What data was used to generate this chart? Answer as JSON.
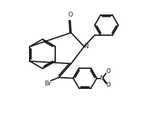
{
  "bg_color": "#ffffff",
  "line_color": "#1a1a1a",
  "line_width": 1.3,
  "font_size": 6.5,
  "figsize": [
    2.39,
    1.8
  ],
  "dpi": 100,
  "xlim": [
    0,
    10
  ],
  "ylim": [
    0,
    7.5
  ]
}
